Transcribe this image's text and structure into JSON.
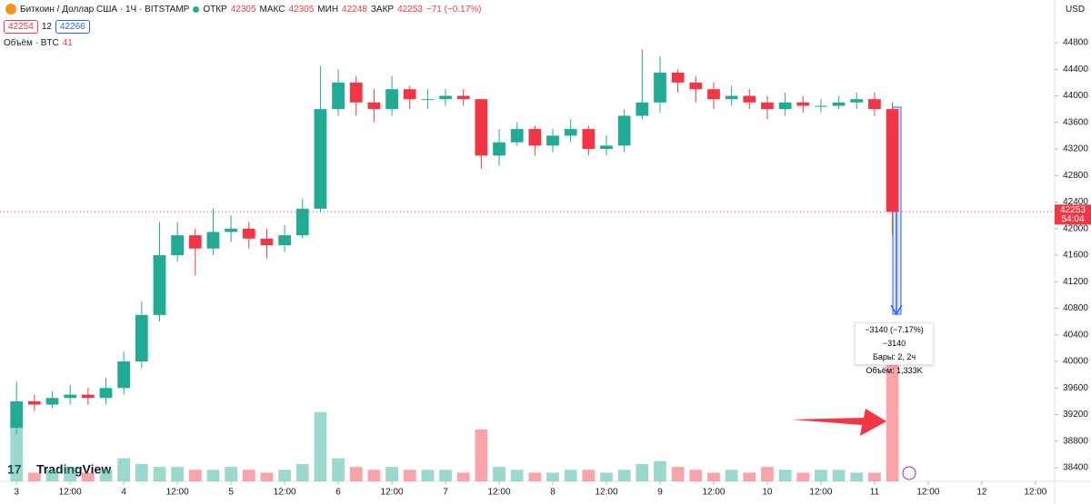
{
  "header": {
    "symbol": "Биткоин / Доллар США · 1Ч · BITSTAMP",
    "open_label": "ОТКР",
    "open": 42305,
    "high_label": "МАКС",
    "high": 42305,
    "low_label": "МИН",
    "low": 42248,
    "close_label": "ЗАКР",
    "close": 42253,
    "change": "−71 (−0.17%)",
    "bid": 42254,
    "spread": 12,
    "ask": 42266,
    "volume_label": "Объём · BTC",
    "volume": 41,
    "currency": "USD",
    "countdown": "54:04",
    "logo": "TradingView"
  },
  "measure": {
    "change": "−3140 (−7.17%) −3140",
    "bars": "Бары: 2, 2ч",
    "volume": "Объём: 1,333K"
  },
  "chart_data": {
    "type": "candlestick",
    "x": [
      0,
      4,
      8,
      12,
      16,
      20,
      24,
      28,
      32,
      36,
      40,
      44,
      48,
      52,
      56,
      60,
      64,
      68,
      72,
      76,
      80,
      84,
      88,
      92,
      96,
      100,
      104,
      108,
      112,
      116,
      120,
      124,
      128,
      132,
      136,
      140,
      144,
      148,
      152,
      156,
      160,
      164,
      168,
      172,
      176,
      180,
      184,
      188,
      192,
      196
    ],
    "open": [
      39000,
      39400,
      39350,
      39450,
      39500,
      39450,
      39600,
      40000,
      40700,
      41600,
      41900,
      41700,
      41950,
      42000,
      41850,
      41750,
      41900,
      42300,
      43800,
      44200,
      43900,
      43800,
      44100,
      43950,
      43950,
      44000,
      43950,
      43100,
      43300,
      43500,
      43250,
      43400,
      43500,
      43200,
      43250,
      43700,
      43900,
      44350,
      44200,
      44100,
      43950,
      44000,
      43900,
      43800,
      43900,
      43850,
      43850,
      43900,
      43950,
      43800
    ],
    "high": [
      39700,
      39500,
      39550,
      39650,
      39600,
      39750,
      40150,
      40900,
      42100,
      42100,
      42000,
      42300,
      42200,
      42100,
      42000,
      42050,
      42450,
      44450,
      44400,
      44300,
      44100,
      44300,
      44150,
      44100,
      44100,
      44100,
      43950,
      43500,
      43600,
      43550,
      43500,
      43650,
      43550,
      43400,
      43800,
      44700,
      44600,
      44400,
      44300,
      44200,
      44150,
      44100,
      44000,
      44050,
      44000,
      43950,
      44000,
      44050,
      44050,
      43900
    ],
    "low": [
      38900,
      39250,
      39300,
      39350,
      39350,
      39350,
      39500,
      39900,
      40600,
      41500,
      41300,
      41600,
      41800,
      41700,
      41550,
      41650,
      41850,
      42250,
      43700,
      43700,
      43600,
      43700,
      43800,
      43800,
      43850,
      43850,
      42900,
      42950,
      43250,
      43100,
      43150,
      43300,
      43100,
      43100,
      43150,
      43650,
      43750,
      44050,
      43900,
      43800,
      43850,
      43800,
      43650,
      43700,
      43750,
      43750,
      43800,
      43800,
      43700,
      41900
    ],
    "close": [
      39400,
      39350,
      39450,
      39500,
      39450,
      39600,
      40000,
      40700,
      41600,
      41900,
      41700,
      41950,
      42000,
      41850,
      41750,
      41900,
      42300,
      43800,
      44200,
      43900,
      43800,
      44100,
      43950,
      43950,
      44000,
      43950,
      43100,
      43300,
      43500,
      43250,
      43400,
      43500,
      43200,
      43250,
      43700,
      43900,
      44350,
      44200,
      44100,
      43950,
      44000,
      43900,
      43800,
      43900,
      43850,
      43850,
      43900,
      43950,
      43800,
      42253
    ],
    "volume": [
      20,
      3,
      4,
      5,
      3,
      4,
      8,
      6,
      5,
      5,
      4,
      4,
      5,
      4,
      3,
      4,
      6,
      24,
      8,
      5,
      4,
      5,
      4,
      4,
      4,
      3,
      18,
      5,
      4,
      3,
      3,
      4,
      4,
      3,
      4,
      6,
      7,
      5,
      4,
      3,
      4,
      3,
      5,
      4,
      3,
      4,
      4,
      3,
      3,
      41
    ],
    "up_color": "#22ab94",
    "down_color": "#f23645",
    "xlim": [
      -3.7,
      232.3
    ],
    "xticks": [
      {
        "value": 0,
        "label": "3"
      },
      {
        "value": 12,
        "label": "12:00"
      },
      {
        "value": 24,
        "label": "4"
      },
      {
        "value": 36,
        "label": "12:00"
      },
      {
        "value": 48,
        "label": "5"
      },
      {
        "value": 60,
        "label": "12:00"
      },
      {
        "value": 72,
        "label": "6"
      },
      {
        "value": 84,
        "label": "12:00"
      },
      {
        "value": 96,
        "label": "7"
      },
      {
        "value": 108,
        "label": "12:00"
      },
      {
        "value": 120,
        "label": "8"
      },
      {
        "value": 132,
        "label": "12:00"
      },
      {
        "value": 144,
        "label": "9"
      },
      {
        "value": 156,
        "label": "12:00"
      },
      {
        "value": 168,
        "label": "10"
      },
      {
        "value": 180,
        "label": "12:00"
      },
      {
        "value": 192,
        "label": "11"
      },
      {
        "value": 204,
        "label": "12:00"
      },
      {
        "value": 216,
        "label": "12"
      },
      {
        "value": 228,
        "label": "12:00"
      }
    ],
    "ylim": [
      38195,
      45443
    ],
    "yticks": [
      38400,
      38800,
      39200,
      39600,
      40000,
      40400,
      40800,
      41200,
      41600,
      42000,
      42400,
      42800,
      43200,
      43600,
      44000,
      44400,
      44800
    ]
  }
}
